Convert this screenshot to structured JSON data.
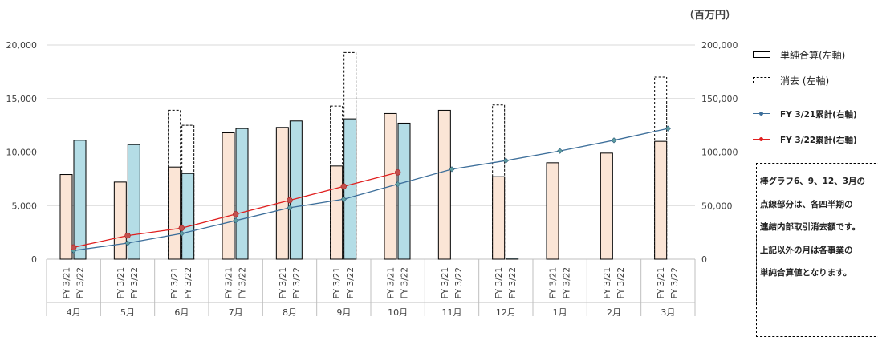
{
  "unit_label": "（百万円）",
  "legend": {
    "simple_sum": "単純合算(左軸)",
    "elimination": "消去 (左軸)",
    "fy21_cum": "FY 3/21累計(右軸)",
    "fy22_cum": "FY 3/22累計(右軸)"
  },
  "note_lines": [
    "棒グラフ6、9、12、3月の",
    "点線部分は、各四半期の",
    "連結内部取引消去額です。",
    "上記以外の月は各事業の",
    "単純合算値となります。"
  ],
  "colors": {
    "fy21_bar": "#FBE5D6",
    "fy22_bar": "#B4DDE6",
    "fy21_line": "#3C6E9A",
    "fy21_marker": "#5F9EA0",
    "fy22_line": "#E02020",
    "fy22_marker": "#C0504D",
    "grid": "#D9D9D9"
  },
  "chart_data": {
    "type": "bar",
    "categories": [
      "4月",
      "5月",
      "6月",
      "7月",
      "8月",
      "9月",
      "10月",
      "11月",
      "12月",
      "1月",
      "2月",
      "3月"
    ],
    "sub_categories": [
      "FY 3/21",
      "FY 3/22"
    ],
    "left_axis": {
      "ylim": [
        0,
        20000
      ],
      "ticks": [
        "0",
        "5,000",
        "10,000",
        "15,000",
        "20,000"
      ]
    },
    "right_axis": {
      "ylim": [
        0,
        200000
      ],
      "ticks": [
        "0",
        "50,000",
        "100,000",
        "150,000",
        "200,000"
      ]
    },
    "series": [
      {
        "name": "単純合算(左軸) FY 3/21",
        "axis": "left",
        "values": [
          7900,
          7200,
          8600,
          11800,
          12300,
          8700,
          13600,
          13900,
          7700,
          9000,
          9900,
          11000
        ]
      },
      {
        "name": "単純合算(左軸) FY 3/22",
        "axis": "left",
        "values": [
          11100,
          10700,
          8000,
          12200,
          12900,
          13100,
          12700,
          null,
          100,
          null,
          null,
          null
        ]
      },
      {
        "name": "消去 (左軸) FY 3/21",
        "axis": "left",
        "values": [
          null,
          null,
          13900,
          null,
          null,
          14300,
          null,
          null,
          14400,
          null,
          null,
          17000
        ]
      },
      {
        "name": "消去 (左軸) FY 3/22",
        "axis": "left",
        "values": [
          null,
          null,
          12500,
          null,
          null,
          19300,
          null,
          null,
          null,
          null,
          null,
          null
        ]
      },
      {
        "name": "FY 3/21累計(右軸)",
        "axis": "right",
        "values": [
          8000,
          15000,
          24000,
          36000,
          48000,
          56000,
          70000,
          84000,
          92000,
          101000,
          111000,
          122000
        ]
      },
      {
        "name": "FY 3/22累計(右軸)",
        "axis": "right",
        "values": [
          11000,
          22000,
          29000,
          42000,
          55000,
          68000,
          81000,
          null,
          null,
          null,
          null,
          null
        ]
      }
    ]
  }
}
